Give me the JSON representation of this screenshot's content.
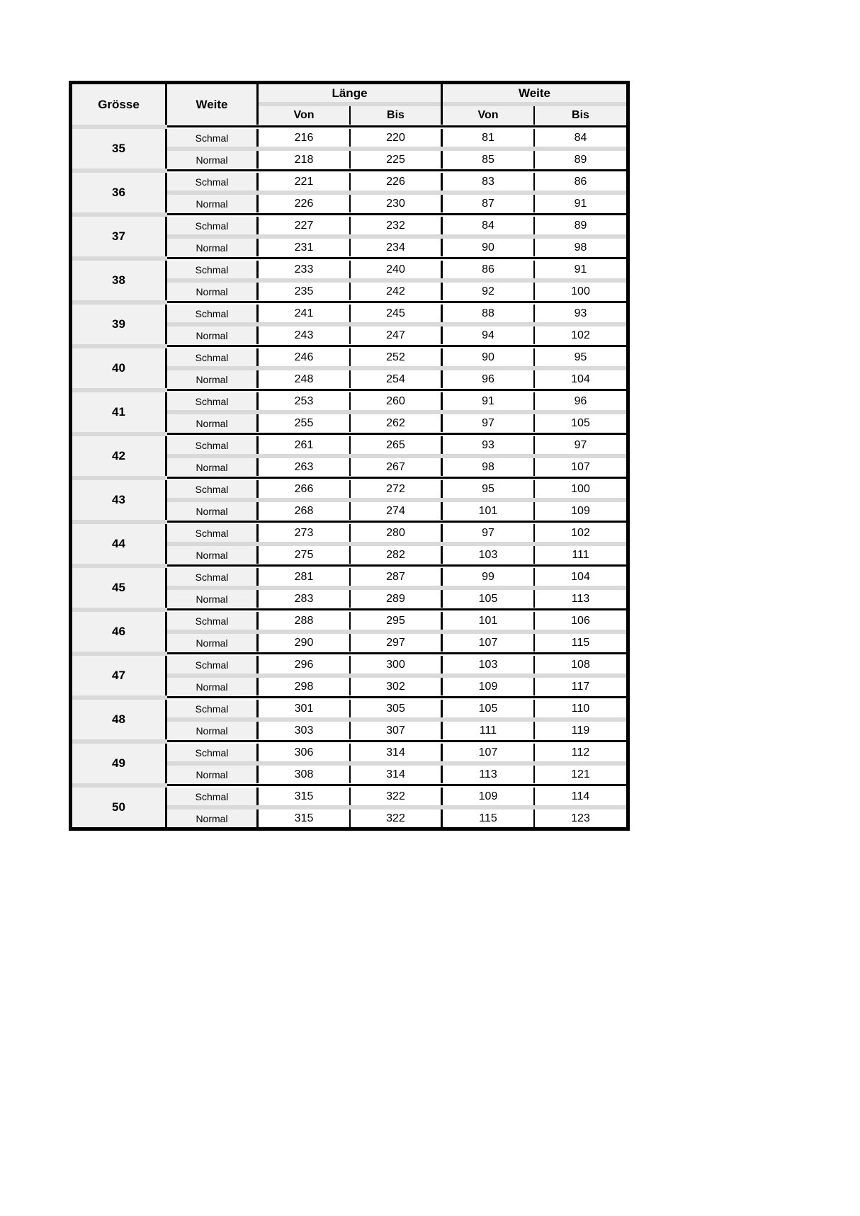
{
  "colors": {
    "border": "#000000",
    "cell_shade": "#f1f1f1",
    "stripe": "#d9d9d9",
    "text": "#000000",
    "paper": "#ffffff"
  },
  "table": {
    "column_headers": {
      "size": "Grösse",
      "width_type": "Weite",
      "length_group": "Länge",
      "width_group": "Weite",
      "from": "Von",
      "to": "Bis"
    },
    "groups": [
      {
        "size": "35",
        "schmal": {
          "label": "Schmal",
          "laenge_von": "216",
          "laenge_bis": "220",
          "weite_von": "81",
          "weite_bis": "84"
        },
        "normal": {
          "label": "Normal",
          "laenge_von": "218",
          "laenge_bis": "225",
          "weite_von": "85",
          "weite_bis": "89"
        }
      },
      {
        "size": "36",
        "schmal": {
          "label": "Schmal",
          "laenge_von": "221",
          "laenge_bis": "226",
          "weite_von": "83",
          "weite_bis": "86"
        },
        "normal": {
          "label": "Normal",
          "laenge_von": "226",
          "laenge_bis": "230",
          "weite_von": "87",
          "weite_bis": "91"
        }
      },
      {
        "size": "37",
        "schmal": {
          "label": "Schmal",
          "laenge_von": "227",
          "laenge_bis": "232",
          "weite_von": "84",
          "weite_bis": "89"
        },
        "normal": {
          "label": "Normal",
          "laenge_von": "231",
          "laenge_bis": "234",
          "weite_von": "90",
          "weite_bis": "98"
        }
      },
      {
        "size": "38",
        "schmal": {
          "label": "Schmal",
          "laenge_von": "233",
          "laenge_bis": "240",
          "weite_von": "86",
          "weite_bis": "91"
        },
        "normal": {
          "label": "Normal",
          "laenge_von": "235",
          "laenge_bis": "242",
          "weite_von": "92",
          "weite_bis": "100"
        }
      },
      {
        "size": "39",
        "schmal": {
          "label": "Schmal",
          "laenge_von": "241",
          "laenge_bis": "245",
          "weite_von": "88",
          "weite_bis": "93"
        },
        "normal": {
          "label": "Normal",
          "laenge_von": "243",
          "laenge_bis": "247",
          "weite_von": "94",
          "weite_bis": "102"
        }
      },
      {
        "size": "40",
        "schmal": {
          "label": "Schmal",
          "laenge_von": "246",
          "laenge_bis": "252",
          "weite_von": "90",
          "weite_bis": "95"
        },
        "normal": {
          "label": "Normal",
          "laenge_von": "248",
          "laenge_bis": "254",
          "weite_von": "96",
          "weite_bis": "104"
        }
      },
      {
        "size": "41",
        "schmal": {
          "label": "Schmal",
          "laenge_von": "253",
          "laenge_bis": "260",
          "weite_von": "91",
          "weite_bis": "96"
        },
        "normal": {
          "label": "Normal",
          "laenge_von": "255",
          "laenge_bis": "262",
          "weite_von": "97",
          "weite_bis": "105"
        }
      },
      {
        "size": "42",
        "schmal": {
          "label": "Schmal",
          "laenge_von": "261",
          "laenge_bis": "265",
          "weite_von": "93",
          "weite_bis": "97"
        },
        "normal": {
          "label": "Normal",
          "laenge_von": "263",
          "laenge_bis": "267",
          "weite_von": "98",
          "weite_bis": "107"
        }
      },
      {
        "size": "43",
        "schmal": {
          "label": "Schmal",
          "laenge_von": "266",
          "laenge_bis": "272",
          "weite_von": "95",
          "weite_bis": "100"
        },
        "normal": {
          "label": "Normal",
          "laenge_von": "268",
          "laenge_bis": "274",
          "weite_von": "101",
          "weite_bis": "109"
        }
      },
      {
        "size": "44",
        "schmal": {
          "label": "Schmal",
          "laenge_von": "273",
          "laenge_bis": "280",
          "weite_von": "97",
          "weite_bis": "102"
        },
        "normal": {
          "label": "Normal",
          "laenge_von": "275",
          "laenge_bis": "282",
          "weite_von": "103",
          "weite_bis": "111"
        }
      },
      {
        "size": "45",
        "schmal": {
          "label": "Schmal",
          "laenge_von": "281",
          "laenge_bis": "287",
          "weite_von": "99",
          "weite_bis": "104"
        },
        "normal": {
          "label": "Normal",
          "laenge_von": "283",
          "laenge_bis": "289",
          "weite_von": "105",
          "weite_bis": "113"
        }
      },
      {
        "size": "46",
        "schmal": {
          "label": "Schmal",
          "laenge_von": "288",
          "laenge_bis": "295",
          "weite_von": "101",
          "weite_bis": "106"
        },
        "normal": {
          "label": "Normal",
          "laenge_von": "290",
          "laenge_bis": "297",
          "weite_von": "107",
          "weite_bis": "115"
        }
      },
      {
        "size": "47",
        "schmal": {
          "label": "Schmal",
          "laenge_von": "296",
          "laenge_bis": "300",
          "weite_von": "103",
          "weite_bis": "108"
        },
        "normal": {
          "label": "Normal",
          "laenge_von": "298",
          "laenge_bis": "302",
          "weite_von": "109",
          "weite_bis": "117"
        }
      },
      {
        "size": "48",
        "schmal": {
          "label": "Schmal",
          "laenge_von": "301",
          "laenge_bis": "305",
          "weite_von": "105",
          "weite_bis": "110"
        },
        "normal": {
          "label": "Normal",
          "laenge_von": "303",
          "laenge_bis": "307",
          "weite_von": "111",
          "weite_bis": "119"
        }
      },
      {
        "size": "49",
        "schmal": {
          "label": "Schmal",
          "laenge_von": "306",
          "laenge_bis": "314",
          "weite_von": "107",
          "weite_bis": "112"
        },
        "normal": {
          "label": "Normal",
          "laenge_von": "308",
          "laenge_bis": "314",
          "weite_von": "113",
          "weite_bis": "121"
        }
      },
      {
        "size": "50",
        "schmal": {
          "label": "Schmal",
          "laenge_von": "315",
          "laenge_bis": "322",
          "weite_von": "109",
          "weite_bis": "114"
        },
        "normal": {
          "label": "Normal",
          "laenge_von": "315",
          "laenge_bis": "322",
          "weite_von": "115",
          "weite_bis": "123"
        }
      }
    ]
  }
}
